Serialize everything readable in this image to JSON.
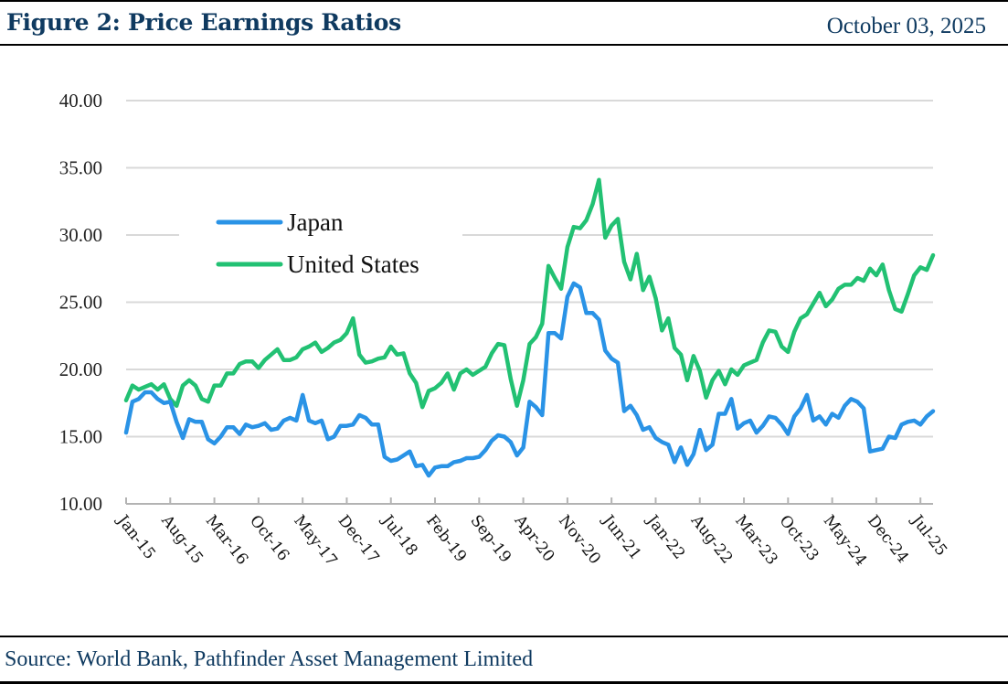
{
  "header": {
    "title": "Figure 2: Price Earnings Ratios",
    "date": "October 03, 2025"
  },
  "footer": {
    "source": "Source: World Bank, Pathfinder Asset Management Limited"
  },
  "chart_data": {
    "type": "line",
    "title": "Figure 2: Price Earnings Ratios",
    "xlabel": "",
    "ylabel": "",
    "ylim": [
      10,
      40
    ],
    "yticks": [
      "10.00",
      "15.00",
      "20.00",
      "25.00",
      "30.00",
      "35.00",
      "40.00"
    ],
    "ytick_values": [
      10,
      15,
      20,
      25,
      30,
      35,
      40
    ],
    "grid": true,
    "legend_position": "upper-left inside plot",
    "x_start": "Jan-15",
    "x_frequency": "monthly",
    "x_tick_labels": [
      "Jan-15",
      "Aug-15",
      "Mar-16",
      "Oct-16",
      "May-17",
      "Dec-17",
      "Jul-18",
      "Feb-19",
      "Sep-19",
      "Apr-20",
      "Nov-20",
      "Jun-21",
      "Jan-22",
      "Aug-22",
      "Mar-23",
      "Oct-23",
      "May-24",
      "Dec-24",
      "Jul-25"
    ],
    "x_tick_step_months": 7,
    "series": [
      {
        "name": "Japan",
        "color": "#2a93e6",
        "values": [
          15.3,
          17.6,
          17.8,
          18.3,
          18.3,
          17.8,
          17.5,
          17.6,
          16.1,
          14.9,
          16.3,
          16.1,
          16.1,
          14.8,
          14.5,
          15.0,
          15.7,
          15.7,
          15.2,
          15.9,
          15.7,
          15.8,
          16.0,
          15.5,
          15.6,
          16.2,
          16.4,
          16.2,
          18.1,
          16.2,
          16.0,
          16.2,
          14.8,
          15.0,
          15.8,
          15.8,
          15.9,
          16.6,
          16.4,
          15.9,
          15.9,
          13.5,
          13.2,
          13.3,
          13.6,
          13.9,
          12.8,
          12.9,
          12.1,
          12.7,
          12.8,
          12.8,
          13.1,
          13.2,
          13.4,
          13.4,
          13.5,
          14.0,
          14.7,
          15.1,
          15.0,
          14.6,
          13.6,
          14.2,
          17.6,
          17.2,
          16.6,
          22.7,
          22.7,
          22.3,
          25.4,
          26.4,
          26.1,
          24.2,
          24.2,
          23.7,
          21.4,
          20.8,
          20.5,
          16.9,
          17.3,
          16.6,
          15.5,
          15.7,
          14.9,
          14.6,
          14.4,
          13.1,
          14.2,
          12.9,
          13.7,
          15.5,
          14.0,
          14.4,
          16.7,
          16.7,
          17.8,
          15.6,
          16.0,
          16.2,
          15.3,
          15.8,
          16.5,
          16.4,
          15.9,
          15.2,
          16.5,
          17.1,
          18.1,
          16.2,
          16.5,
          15.9,
          16.7,
          16.4,
          17.3,
          17.8,
          17.6,
          17.1,
          13.9,
          14.0,
          14.1,
          15.0,
          14.9,
          15.9,
          16.1,
          16.2,
          15.9,
          16.5,
          16.9
        ]
      },
      {
        "name": "United States",
        "color": "#22c173",
        "values": [
          17.7,
          18.8,
          18.5,
          18.7,
          18.9,
          18.5,
          18.9,
          17.8,
          17.3,
          18.8,
          19.2,
          18.8,
          17.8,
          17.6,
          18.8,
          18.8,
          19.7,
          19.7,
          20.4,
          20.6,
          20.6,
          20.1,
          20.7,
          21.1,
          21.5,
          20.7,
          20.7,
          20.9,
          21.5,
          21.7,
          22.0,
          21.3,
          21.6,
          22.0,
          22.2,
          22.7,
          23.8,
          21.1,
          20.5,
          20.6,
          20.8,
          20.9,
          21.7,
          21.1,
          21.2,
          19.7,
          19.0,
          17.2,
          18.4,
          18.6,
          19.0,
          19.7,
          18.5,
          19.7,
          20.0,
          19.6,
          19.9,
          20.2,
          21.2,
          21.9,
          21.8,
          19.3,
          17.3,
          19.2,
          21.9,
          22.4,
          23.4,
          27.7,
          26.8,
          26.0,
          29.1,
          30.6,
          30.5,
          31.1,
          32.3,
          34.1,
          29.8,
          30.7,
          31.2,
          28.0,
          26.7,
          28.6,
          25.9,
          26.9,
          25.3,
          22.9,
          23.8,
          21.6,
          21.1,
          19.2,
          21.0,
          19.9,
          17.9,
          19.2,
          19.9,
          18.9,
          20.0,
          19.6,
          20.3,
          20.5,
          20.7,
          22.0,
          22.9,
          22.8,
          21.7,
          21.3,
          22.8,
          23.8,
          24.1,
          24.9,
          25.7,
          24.7,
          25.2,
          26.0,
          26.3,
          26.3,
          26.8,
          26.6,
          27.5,
          27.0,
          27.8,
          25.9,
          24.5,
          24.3,
          25.6,
          27.0,
          27.6,
          27.4,
          28.5
        ]
      }
    ]
  }
}
